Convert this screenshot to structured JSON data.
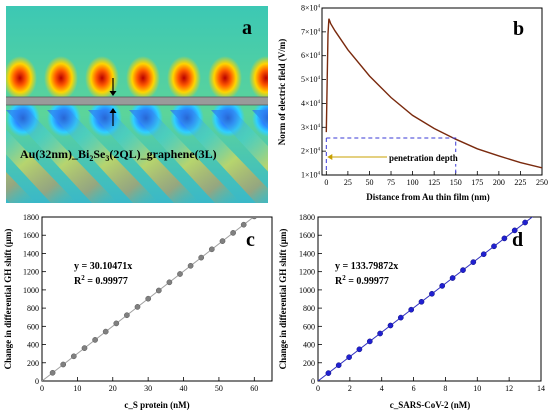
{
  "figure": {
    "panels": [
      "a",
      "b",
      "c",
      "d"
    ]
  },
  "panel_a": {
    "letter": "a",
    "structure_label_parts": [
      "Au(32nm)_Bi",
      "2",
      "Se",
      "3",
      "(2QL)_graphene(3L)"
    ]
  },
  "colors": {
    "curve_b": "#7a2a0e",
    "dash_b": "#3a3ad6",
    "arrow_b": "#c8a000",
    "line_c": "#a0a0a0",
    "marker_c": "#808080",
    "line_d": "#3030c0",
    "marker_d": "#2020d0"
  },
  "chart_data": [
    {
      "panel": "b",
      "type": "line",
      "xlabel": "Distance from Au thin film (nm)",
      "ylabel": "Norm of electric field (V/m)",
      "xlim": [
        -5,
        250
      ],
      "ylim": [
        10000,
        80000
      ],
      "xticks": [
        "0",
        "25",
        "50",
        "75",
        "100",
        "125",
        "150",
        "175",
        "200",
        "225",
        "250"
      ],
      "yticks": [
        {
          "m": "1",
          "e": "4"
        },
        {
          "m": "2",
          "e": "4"
        },
        {
          "m": "3",
          "e": "4"
        },
        {
          "m": "4",
          "e": "4"
        },
        {
          "m": "5",
          "e": "4"
        },
        {
          "m": "6",
          "e": "4"
        },
        {
          "m": "7",
          "e": "4"
        },
        {
          "m": "8",
          "e": "4"
        }
      ],
      "annotation": "penetration depth",
      "penetration_depth_x": 150,
      "penetration_depth_y": 25500,
      "x": [
        0,
        1,
        2,
        3,
        4,
        5,
        10,
        25,
        50,
        75,
        100,
        125,
        150,
        175,
        200,
        225,
        250
      ],
      "y": [
        28000,
        50000,
        69000,
        75500,
        74500,
        73500,
        70500,
        62500,
        51500,
        42500,
        35000,
        29500,
        25000,
        21000,
        18000,
        15200,
        13000
      ]
    },
    {
      "panel": "c",
      "type": "scatter",
      "xlabel": "c_S protein (nM)",
      "ylabel": "Change in differential GH shift (μm)",
      "xlim": [
        0,
        65
      ],
      "ylim": [
        0,
        1800
      ],
      "xticks": [
        "0",
        "10",
        "20",
        "30",
        "40",
        "50",
        "60"
      ],
      "yticks": [
        "0",
        "200",
        "400",
        "600",
        "800",
        "1000",
        "1200",
        "1400",
        "1600",
        "1800"
      ],
      "equation": "y = 30.10471x",
      "r2_label": "R",
      "r2_exp": "2",
      "r2_value": " = 0.99977",
      "slope": 30.10471,
      "fit_x": [
        0,
        62
      ],
      "x": [
        3,
        6,
        9,
        12,
        15,
        18,
        21,
        24,
        27,
        30,
        33,
        36,
        39,
        42,
        45,
        48,
        51,
        54,
        57,
        60
      ],
      "y": [
        90.3,
        180.6,
        270.9,
        361.3,
        451.6,
        541.9,
        632.2,
        722.5,
        812.8,
        903.1,
        993.5,
        1083.8,
        1174.1,
        1264.4,
        1354.7,
        1445.0,
        1535.3,
        1625.7,
        1716.0,
        1806.3
      ]
    },
    {
      "panel": "d",
      "type": "scatter",
      "xlabel": "c_SARS-CoV-2 (nM)",
      "ylabel": "Change in differential GH shift (μm)",
      "xlim": [
        0,
        14
      ],
      "ylim": [
        0,
        1800
      ],
      "xticks": [
        "0",
        "2",
        "4",
        "6",
        "8",
        "10",
        "12",
        "14"
      ],
      "yticks": [
        "0",
        "200",
        "400",
        "600",
        "800",
        "1000",
        "1200",
        "1400",
        "1600",
        "1800"
      ],
      "equation": "y = 133.79872x",
      "r2_label": "R",
      "r2_exp": "2",
      "r2_value": " = 0.99977",
      "slope": 133.79872,
      "fit_x": [
        0,
        13.6
      ],
      "x": [
        0.65,
        1.3,
        1.95,
        2.6,
        3.25,
        3.9,
        4.55,
        5.2,
        5.85,
        6.5,
        7.15,
        7.8,
        8.45,
        9.1,
        9.75,
        10.4,
        11.05,
        11.7,
        12.35,
        13.0
      ],
      "y": [
        87.0,
        173.9,
        260.9,
        347.9,
        434.8,
        521.8,
        608.8,
        695.8,
        782.7,
        869.7,
        956.7,
        1043.6,
        1130.6,
        1217.6,
        1304.5,
        1391.5,
        1478.5,
        1565.4,
        1652.4,
        1739.4
      ]
    }
  ]
}
